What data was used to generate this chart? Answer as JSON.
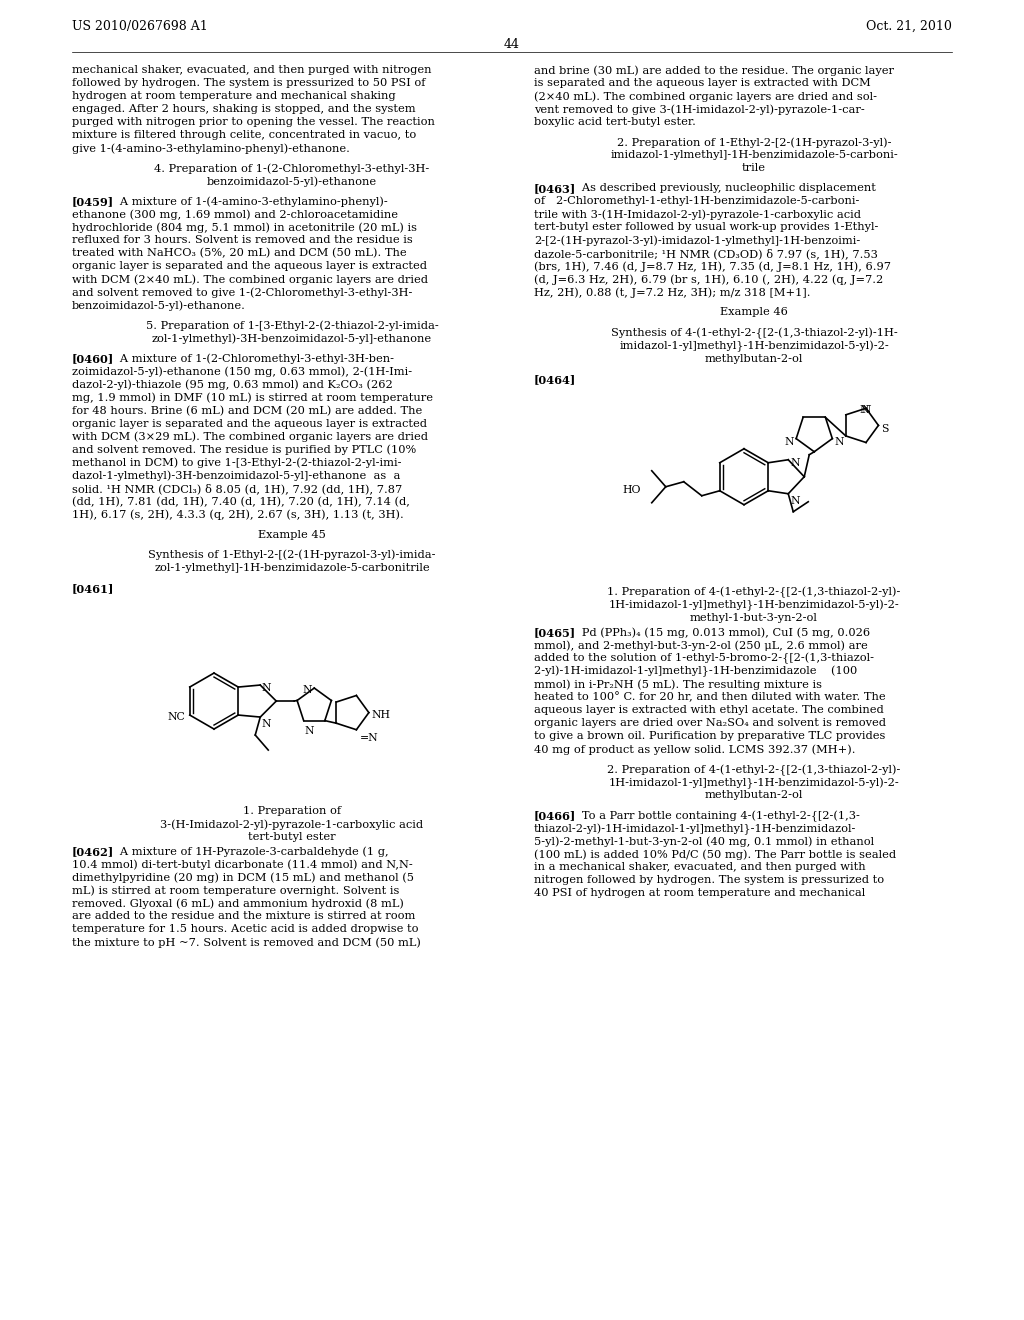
{
  "background_color": "#ffffff",
  "page_header_left": "US 2010/0267698 A1",
  "page_header_right": "Oct. 21, 2010",
  "page_number": "44"
}
